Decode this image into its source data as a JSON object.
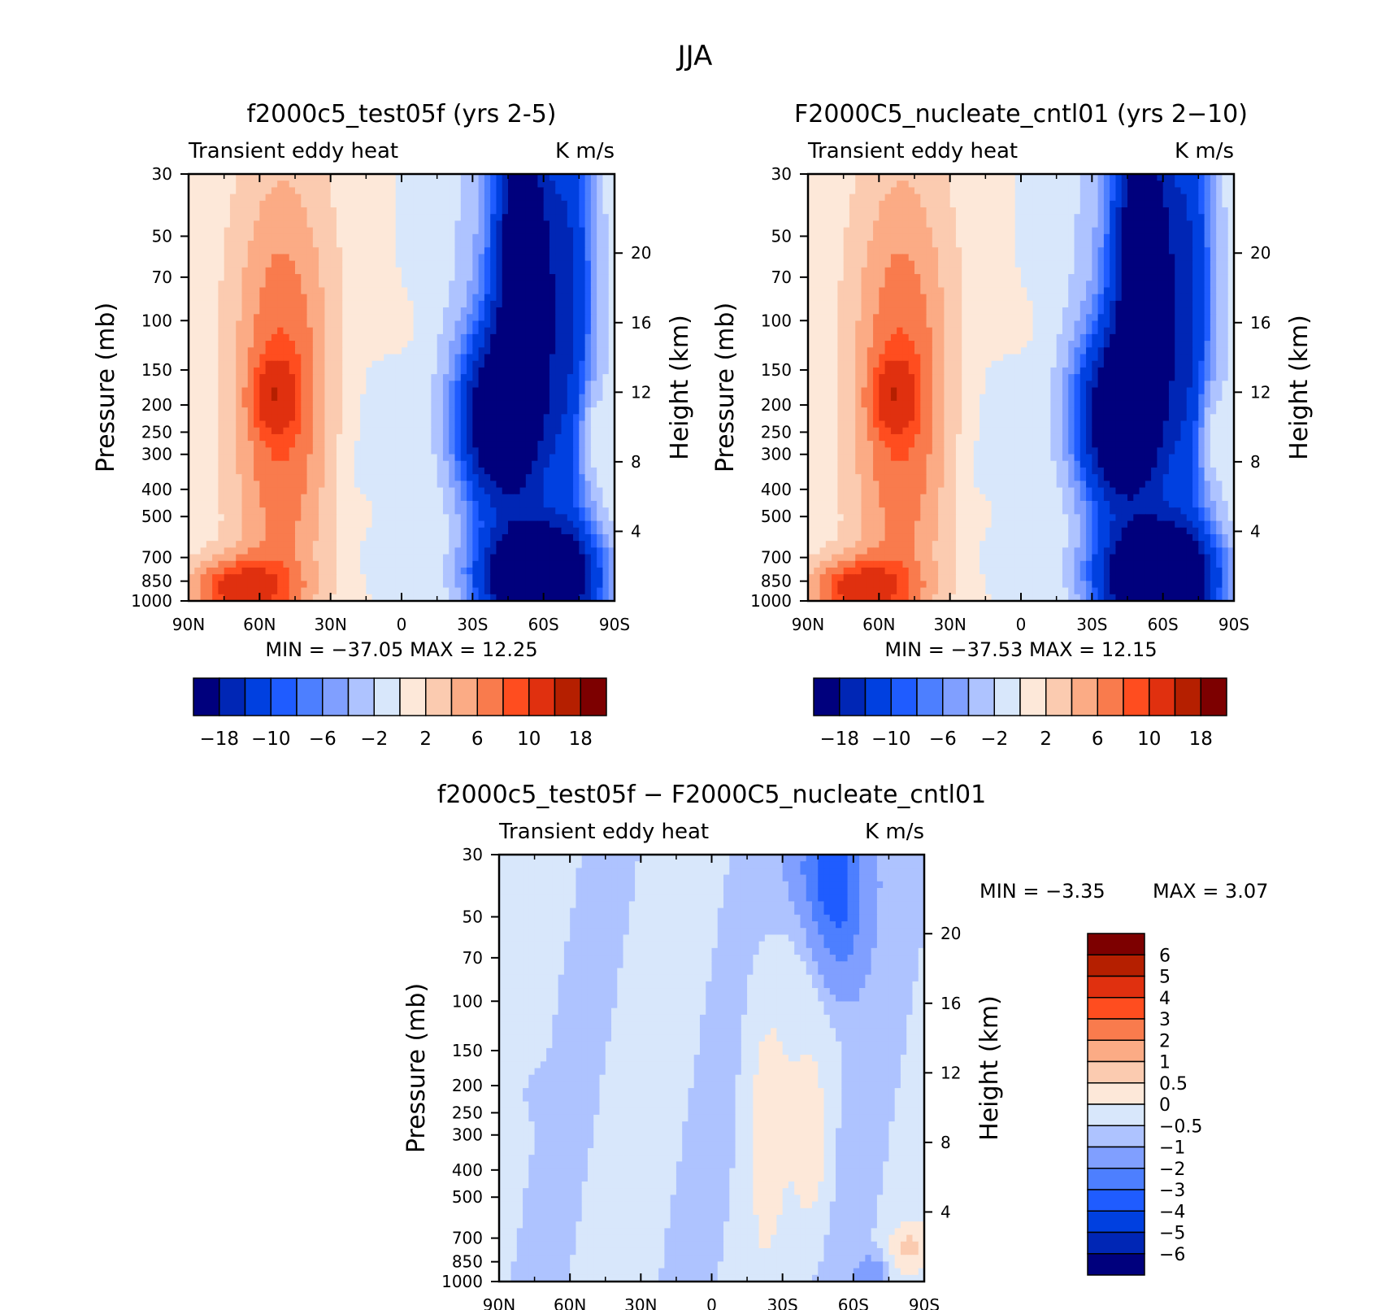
{
  "figure": {
    "title": "JJA"
  },
  "colors": {
    "panel_scale": [
      "#00007d",
      "#0026b5",
      "#0040e0",
      "#1f5cff",
      "#4d7fff",
      "#809fff",
      "#aec3ff",
      "#d8e7fb",
      "#fde8d9",
      "#fbcbb0",
      "#fbab85",
      "#f97b4d",
      "#ff4d1f",
      "#e0300f",
      "#b51f00",
      "#7d0000"
    ],
    "diff_scale": [
      "#00007d",
      "#0026b5",
      "#0040e0",
      "#1f5cff",
      "#4d7fff",
      "#809fff",
      "#aec3ff",
      "#d8e7fb",
      "#fde8d9",
      "#fbcbb0",
      "#fbab85",
      "#f97b4d",
      "#ff4d1f",
      "#e0300f",
      "#b51f00",
      "#7d0000"
    ]
  },
  "chart_data": [
    {
      "type": "heatmap",
      "panel": "left",
      "title": "f2000c5_test05f (yrs 2-5)",
      "left_label": "Transient eddy heat",
      "right_label": "K m/s",
      "ylabel": "Pressure (mb)",
      "ylabel_right": "Height (km)",
      "x_ticks": [
        "90N",
        "60N",
        "30N",
        "0",
        "30S",
        "60S",
        "90S"
      ],
      "y_ticks": [
        "30",
        "50",
        "70",
        "100",
        "150",
        "200",
        "250",
        "300",
        "400",
        "500",
        "700",
        "850",
        "1000"
      ],
      "y_right_ticks": [
        "20",
        "16",
        "12",
        "8",
        "4"
      ],
      "ylim": [
        1000,
        30
      ],
      "stats": "MIN = −37.05   MAX =   12.25",
      "colorbar_labels": [
        "−18",
        "−10",
        "−6",
        "−2",
        "2",
        "6",
        "10",
        "18"
      ]
    },
    {
      "type": "heatmap",
      "panel": "right",
      "title": "F2000C5_nucleate_cntl01 (yrs 2−10)",
      "left_label": "Transient eddy heat",
      "right_label": "K m/s",
      "ylabel": "Pressure (mb)",
      "ylabel_right": "Height (km)",
      "x_ticks": [
        "90N",
        "60N",
        "30N",
        "0",
        "30S",
        "60S",
        "90S"
      ],
      "y_ticks": [
        "30",
        "50",
        "70",
        "100",
        "150",
        "200",
        "250",
        "300",
        "400",
        "500",
        "700",
        "850",
        "1000"
      ],
      "y_right_ticks": [
        "20",
        "16",
        "12",
        "8",
        "4"
      ],
      "ylim": [
        1000,
        30
      ],
      "stats": "MIN = −37.53   MAX =   12.15",
      "colorbar_labels": [
        "−18",
        "−10",
        "−6",
        "−2",
        "2",
        "6",
        "10",
        "18"
      ]
    },
    {
      "type": "heatmap",
      "panel": "difference",
      "title": "f2000c5_test05f − F2000C5_nucleate_cntl01",
      "left_label": "Transient eddy heat",
      "right_label": "K m/s",
      "ylabel": "Pressure (mb)",
      "ylabel_right": "Height (km)",
      "x_ticks": [
        "90N",
        "60N",
        "30N",
        "0",
        "30S",
        "60S",
        "90S"
      ],
      "y_ticks": [
        "30",
        "50",
        "70",
        "100",
        "150",
        "200",
        "250",
        "300",
        "400",
        "500",
        "700",
        "850",
        "1000"
      ],
      "y_right_ticks": [
        "20",
        "16",
        "12",
        "8",
        "4"
      ],
      "ylim": [
        1000,
        30
      ],
      "stats_min": "MIN =    −3.35",
      "stats_max": "MAX =     3.07",
      "colorbar_labels": [
        "6",
        "5",
        "4",
        "3",
        "2",
        "1",
        "0.5",
        "0",
        "−0.5",
        "−1",
        "−2",
        "−3",
        "−4",
        "−5",
        "−6"
      ]
    }
  ]
}
